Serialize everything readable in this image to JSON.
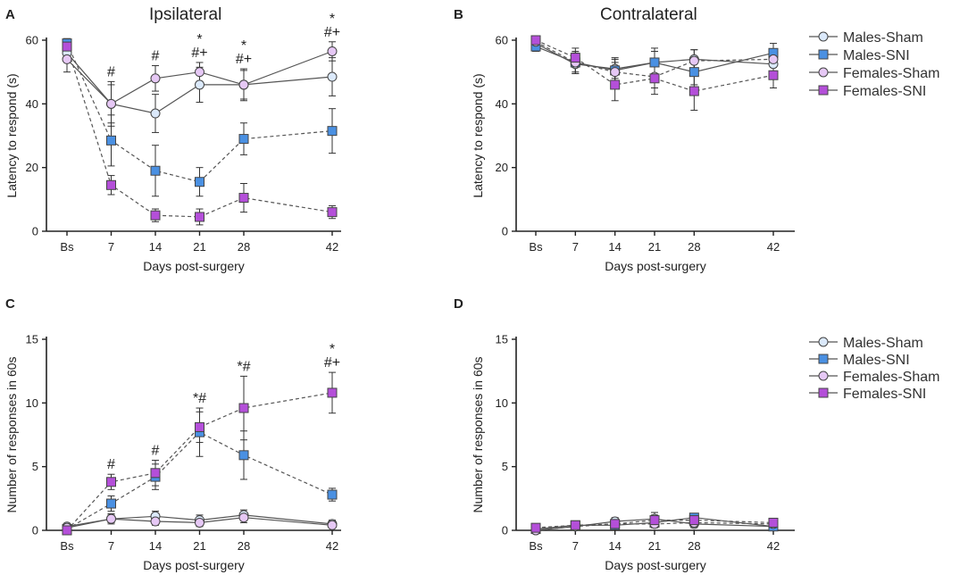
{
  "figure": {
    "panels": [
      {
        "letter": "A",
        "title": "Ipsilateral"
      },
      {
        "letter": "B",
        "title": "Contralateral"
      },
      {
        "letter": "C",
        "title": ""
      },
      {
        "letter": "D",
        "title": ""
      }
    ],
    "legend_top": [
      "Males-Sham",
      "Males-SNI",
      "Females-Sham",
      "Females-SNI"
    ],
    "legend_bottom": [
      "Males-Sham",
      "Males-SNI",
      "Females-Sham",
      "Females-SNI"
    ],
    "colors": {
      "males_sham": "#dbe9fb",
      "males_sni": "#4a90e2",
      "females_sham": "#e6c8f5",
      "females_sni": "#b44fd9",
      "line": "#555555",
      "axis": "#222222"
    }
  },
  "chart_data": [
    {
      "panel": "A",
      "type": "line",
      "title": "Ipsilateral",
      "xlabel": "Days post-surgery",
      "ylabel": "Latency to respond (s)",
      "categories": [
        "Bs",
        "7",
        "14",
        "21",
        "28",
        "42"
      ],
      "x": [
        0,
        7,
        14,
        21,
        28,
        42
      ],
      "ylim": [
        0,
        60
      ],
      "yticks": [
        "0",
        "20",
        "40",
        "60"
      ],
      "series": [
        {
          "name": "Males-Sham",
          "values": [
            56,
            40,
            37,
            46,
            46,
            48.5
          ],
          "errors": [
            3,
            6,
            6,
            5.5,
            4.5,
            6
          ],
          "style": "solid",
          "marker": "circle"
        },
        {
          "name": "Males-SNI",
          "values": [
            59,
            28.5,
            19,
            15.5,
            29,
            31.5
          ],
          "errors": [
            1.5,
            8,
            8,
            4.5,
            5,
            7
          ],
          "style": "dashed",
          "marker": "square"
        },
        {
          "name": "Females-Sham",
          "values": [
            54,
            40,
            48,
            50,
            46,
            56.5
          ],
          "errors": [
            4,
            7,
            4,
            3,
            5,
            3
          ],
          "style": "solid",
          "marker": "circle"
        },
        {
          "name": "Females-SNI",
          "values": [
            58,
            14.5,
            5,
            4.5,
            10.5,
            6
          ],
          "errors": [
            1.5,
            3,
            2,
            2.5,
            4.5,
            2
          ],
          "style": "dashed",
          "marker": "square"
        }
      ],
      "annotations": [
        {
          "x": 7,
          "lines": [
            "#"
          ]
        },
        {
          "x": 14,
          "lines": [
            "#"
          ]
        },
        {
          "x": 21,
          "lines": [
            "*",
            "#+"
          ]
        },
        {
          "x": 28,
          "lines": [
            "*",
            "#+"
          ]
        },
        {
          "x": 42,
          "lines": [
            "*",
            "#+"
          ]
        }
      ]
    },
    {
      "panel": "B",
      "type": "line",
      "title": "Contralateral",
      "xlabel": "Days post-surgery",
      "ylabel": "Latency to respond (s)",
      "categories": [
        "Bs",
        "7",
        "14",
        "21",
        "28",
        "42"
      ],
      "x": [
        0,
        7,
        14,
        21,
        28,
        42
      ],
      "ylim": [
        0,
        60
      ],
      "yticks": [
        "0",
        "20",
        "40",
        "60"
      ],
      "series": [
        {
          "name": "Males-Sham",
          "values": [
            59,
            52.5,
            51,
            53,
            54,
            52.5
          ],
          "errors": [
            1.5,
            3,
            3,
            3.5,
            3,
            3
          ],
          "style": "solid",
          "marker": "circle"
        },
        {
          "name": "Males-SNI",
          "values": [
            58,
            53,
            50.5,
            53,
            50,
            56
          ],
          "errors": [
            1.5,
            3.5,
            4,
            4.5,
            4,
            3
          ],
          "style": "solid",
          "marker": "square"
        },
        {
          "name": "Females-Sham",
          "values": [
            59.5,
            53,
            50,
            48.5,
            53.5,
            54
          ],
          "errors": [
            1,
            3,
            3,
            3.5,
            3.5,
            2.5
          ],
          "style": "dashed",
          "marker": "circle"
        },
        {
          "name": "Females-SNI",
          "values": [
            60,
            54.5,
            46,
            48,
            44,
            49
          ],
          "errors": [
            1,
            3,
            5,
            5,
            6,
            4
          ],
          "style": "dashed",
          "marker": "square"
        }
      ],
      "annotations": []
    },
    {
      "panel": "C",
      "type": "line",
      "title": "",
      "xlabel": "Days post-surgery",
      "ylabel": "Number of responses in 60s",
      "categories": [
        "Bs",
        "7",
        "14",
        "21",
        "28",
        "42"
      ],
      "x": [
        0,
        7,
        14,
        21,
        28,
        42
      ],
      "ylim": [
        0,
        15
      ],
      "yticks": [
        "0",
        "5",
        "10",
        "15"
      ],
      "series": [
        {
          "name": "Males-Sham",
          "values": [
            0.3,
            0.9,
            1.1,
            0.8,
            1.2,
            0.5
          ],
          "errors": [
            0.2,
            0.4,
            0.4,
            0.4,
            0.4,
            0.3
          ],
          "style": "solid",
          "marker": "circle"
        },
        {
          "name": "Males-SNI",
          "values": [
            0.1,
            2.1,
            4.2,
            7.7,
            5.9,
            2.8
          ],
          "errors": [
            0.1,
            0.6,
            1.0,
            1.9,
            1.9,
            0.5
          ],
          "style": "dashed",
          "marker": "square"
        },
        {
          "name": "Females-Sham",
          "values": [
            0.2,
            0.9,
            0.7,
            0.6,
            1.0,
            0.4
          ],
          "errors": [
            0.2,
            0.3,
            0.3,
            0.3,
            0.4,
            0.2
          ],
          "style": "solid",
          "marker": "circle"
        },
        {
          "name": "Females-SNI",
          "values": [
            0.0,
            3.8,
            4.5,
            8.1,
            9.6,
            10.8
          ],
          "errors": [
            0.1,
            0.6,
            1.0,
            1.2,
            2.5,
            1.6
          ],
          "style": "dashed",
          "marker": "square"
        }
      ],
      "annotations": [
        {
          "x": 7,
          "lines": [
            "#"
          ]
        },
        {
          "x": 14,
          "lines": [
            "#"
          ]
        },
        {
          "x": 21,
          "lines": [
            "*#"
          ]
        },
        {
          "x": 28,
          "lines": [
            "*#"
          ]
        },
        {
          "x": 42,
          "lines": [
            "*",
            "#+"
          ]
        }
      ]
    },
    {
      "panel": "D",
      "type": "line",
      "title": "",
      "xlabel": "Days post-surgery",
      "ylabel": "Number of responses in 60s",
      "categories": [
        "Bs",
        "7",
        "14",
        "21",
        "28",
        "42"
      ],
      "x": [
        0,
        7,
        14,
        21,
        28,
        42
      ],
      "ylim": [
        0,
        15
      ],
      "yticks": [
        "0",
        "5",
        "10",
        "15"
      ],
      "series": [
        {
          "name": "Males-Sham",
          "values": [
            0.0,
            0.3,
            0.7,
            0.9,
            0.5,
            0.3
          ],
          "errors": [
            0.1,
            0.2,
            0.3,
            0.5,
            0.3,
            0.2
          ],
          "style": "solid",
          "marker": "circle"
        },
        {
          "name": "Males-SNI",
          "values": [
            0.1,
            0.4,
            0.4,
            0.6,
            1.0,
            0.3
          ],
          "errors": [
            0.1,
            0.2,
            0.2,
            0.3,
            0.3,
            0.2
          ],
          "style": "solid",
          "marker": "square"
        },
        {
          "name": "Females-Sham",
          "values": [
            0.0,
            0.3,
            0.5,
            0.5,
            0.6,
            0.5
          ],
          "errors": [
            0.1,
            0.2,
            0.2,
            0.3,
            0.3,
            0.2
          ],
          "style": "dashed",
          "marker": "circle"
        },
        {
          "name": "Females-SNI",
          "values": [
            0.2,
            0.4,
            0.5,
            0.8,
            0.8,
            0.6
          ],
          "errors": [
            0.1,
            0.2,
            0.3,
            0.4,
            0.4,
            0.3
          ],
          "style": "dashed",
          "marker": "square"
        }
      ],
      "annotations": []
    }
  ]
}
